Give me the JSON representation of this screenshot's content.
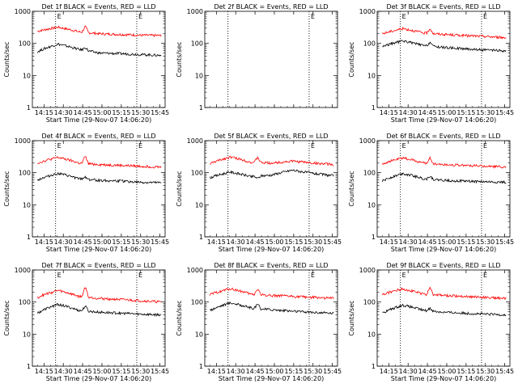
{
  "chart_data": [
    {
      "type": "line",
      "title": "Det 1f  BLACK = Events, RED = LLD",
      "ylabel": "Counts/sec",
      "xlabel": "Start Time (29-Nov-07 14:06:20)",
      "x_ticks": [
        "14:15",
        "14:30",
        "14:45",
        "15:00",
        "15:15",
        "15:30",
        "15:45"
      ],
      "y_ticks": [
        "1",
        "10",
        "100",
        "1000"
      ],
      "ylim": [
        1,
        1000
      ],
      "yscale": "log",
      "markers": [
        {
          "time": "14:24",
          "label": "E"
        },
        {
          "time": "15:27",
          "label": "E"
        }
      ],
      "series": [
        {
          "color": "#ff0000",
          "base": [
            240,
            320,
            230,
            200,
            190,
            180,
            175
          ],
          "spike": {
            "time": "14:47",
            "value": 330
          }
        },
        {
          "color": "#000000",
          "base": [
            55,
            95,
            65,
            50,
            48,
            45,
            42
          ],
          "spike": {
            "time": "14:47",
            "value": 75
          }
        }
      ]
    },
    {
      "type": "line",
      "title": "Det 2f  BLACK = Events, RED = LLD",
      "ylabel": "Counts/sec",
      "xlabel": "",
      "x_ticks": [],
      "y_ticks": [
        "1",
        "10",
        "100",
        "1000"
      ],
      "ylim": [
        1,
        1000
      ],
      "yscale": "log",
      "markers": [
        {
          "time": "14:24",
          "label": ""
        },
        {
          "time": "15:27",
          "label": "E"
        }
      ],
      "series": []
    },
    {
      "type": "line",
      "title": "Det 3f  BLACK = Events, RED = LLD",
      "ylabel": "Counts/sec",
      "xlabel": "Start Time (29-Nov-07 14:06:20)",
      "x_ticks": [
        "14:15",
        "14:30",
        "14:45",
        "15:00",
        "15:15",
        "15:30",
        "15:45"
      ],
      "y_ticks": [
        "1",
        "10",
        "100",
        "1000"
      ],
      "ylim": [
        1,
        1000
      ],
      "yscale": "log",
      "markers": [
        {
          "time": "14:24",
          "label": "E"
        },
        {
          "time": "15:27",
          "label": "E"
        }
      ],
      "series": [
        {
          "color": "#ff0000",
          "base": [
            200,
            290,
            210,
            190,
            175,
            165,
            150
          ],
          "spike": {
            "time": "14:47",
            "value": 290
          }
        },
        {
          "color": "#000000",
          "base": [
            80,
            120,
            85,
            75,
            68,
            62,
            58
          ],
          "spike": {
            "time": "14:47",
            "value": 110
          }
        }
      ]
    },
    {
      "type": "line",
      "title": "Det 4f  BLACK = Events, RED = LLD",
      "ylabel": "Counts/sec",
      "xlabel": "Start Time (29-Nov-07 14:06:20)",
      "x_ticks": [
        "14:15",
        "14:30",
        "14:45",
        "15:00",
        "15:15",
        "15:30",
        "15:45"
      ],
      "y_ticks": [
        "1",
        "10",
        "100",
        "1000"
      ],
      "ylim": [
        1,
        1000
      ],
      "yscale": "log",
      "markers": [
        {
          "time": "14:24",
          "label": "E"
        },
        {
          "time": "15:27",
          "label": "E"
        }
      ],
      "series": [
        {
          "color": "#ff0000",
          "base": [
            200,
            300,
            200,
            180,
            170,
            160,
            150
          ],
          "spike": {
            "time": "14:47",
            "value": 320
          }
        },
        {
          "color": "#000000",
          "base": [
            60,
            95,
            65,
            58,
            55,
            50,
            48
          ],
          "spike": {
            "time": "14:47",
            "value": 75
          }
        }
      ]
    },
    {
      "type": "line",
      "title": "Det 5f  BLACK = Events, RED = LLD",
      "ylabel": "Counts/sec",
      "xlabel": "Start Time (29-Nov-07 14:06:20)",
      "x_ticks": [
        "14:15",
        "14:30",
        "14:45",
        "15:00",
        "15:15",
        "15:30",
        "15:45"
      ],
      "y_ticks": [
        "1",
        "10",
        "100",
        "1000"
      ],
      "ylim": [
        1,
        1000
      ],
      "yscale": "log",
      "markers": [
        {
          "time": "14:24",
          "label": ""
        },
        {
          "time": "15:27",
          "label": "E"
        }
      ],
      "series": [
        {
          "color": "#ff0000",
          "base": [
            190,
            310,
            210,
            200,
            230,
            200,
            180
          ],
          "spike": {
            "time": "14:47",
            "value": 300
          }
        },
        {
          "color": "#000000",
          "base": [
            70,
            105,
            75,
            85,
            120,
            95,
            80
          ],
          "spike": {
            "time": "14:47",
            "value": 65
          }
        }
      ]
    },
    {
      "type": "line",
      "title": "Det 6f  BLACK = Events, RED = LLD",
      "ylabel": "Counts/sec",
      "xlabel": "Start Time (29-Nov-07 14:06:20)",
      "x_ticks": [
        "14:15",
        "14:30",
        "14:45",
        "15:00",
        "15:15",
        "15:30",
        "15:45"
      ],
      "y_ticks": [
        "1",
        "10",
        "100",
        "1000"
      ],
      "ylim": [
        1,
        1000
      ],
      "yscale": "log",
      "markers": [
        {
          "time": "14:24",
          "label": "E"
        },
        {
          "time": "15:27",
          "label": "E"
        }
      ],
      "series": [
        {
          "color": "#ff0000",
          "base": [
            190,
            290,
            200,
            180,
            170,
            160,
            150
          ],
          "spike": {
            "time": "14:47",
            "value": 290
          }
        },
        {
          "color": "#000000",
          "base": [
            55,
            95,
            65,
            58,
            55,
            52,
            50
          ],
          "spike": {
            "time": "14:47",
            "value": 80
          }
        }
      ]
    },
    {
      "type": "line",
      "title": "Det 7f  BLACK = Events, RED = LLD",
      "ylabel": "Counts/sec",
      "xlabel": "Start Time (29-Nov-07 14:06:20)",
      "x_ticks": [
        "14:15",
        "14:30",
        "14:45",
        "15:00",
        "15:15",
        "15:30",
        "15:45"
      ],
      "y_ticks": [
        "1",
        "10",
        "100",
        "1000"
      ],
      "ylim": [
        1,
        1000
      ],
      "yscale": "log",
      "markers": [
        {
          "time": "14:24",
          "label": "E"
        },
        {
          "time": "15:27",
          "label": "E"
        }
      ],
      "series": [
        {
          "color": "#ff0000",
          "base": [
            140,
            230,
            150,
            130,
            120,
            110,
            100
          ],
          "spike": {
            "time": "14:47",
            "value": 290
          }
        },
        {
          "color": "#000000",
          "base": [
            45,
            85,
            55,
            48,
            45,
            42,
            40
          ],
          "spike": {
            "time": "14:47",
            "value": 75
          }
        }
      ]
    },
    {
      "type": "line",
      "title": "Det 8f  BLACK = Events, RED = LLD",
      "ylabel": "Counts/sec",
      "xlabel": "Start Time (29-Nov-07 14:06:20)",
      "x_ticks": [
        "14:15",
        "14:30",
        "14:45",
        "15:00",
        "15:15",
        "15:30",
        "15:45"
      ],
      "y_ticks": [
        "1",
        "10",
        "100",
        "1000"
      ],
      "ylim": [
        1,
        1000
      ],
      "yscale": "log",
      "markers": [
        {
          "time": "14:24",
          "label": ""
        },
        {
          "time": "15:27",
          "label": "E"
        }
      ],
      "series": [
        {
          "color": "#ff0000",
          "base": [
            170,
            260,
            175,
            160,
            150,
            140,
            130
          ],
          "spike": {
            "time": "14:47",
            "value": 260
          }
        },
        {
          "color": "#000000",
          "base": [
            55,
            95,
            65,
            58,
            52,
            48,
            45
          ],
          "spike": {
            "time": "14:47",
            "value": 85
          }
        }
      ]
    },
    {
      "type": "line",
      "title": "Det 9f  BLACK = Events, RED = LLD",
      "ylabel": "Counts/sec",
      "xlabel": "Start Time (29-Nov-07 14:06:20)",
      "x_ticks": [
        "14:15",
        "14:30",
        "14:45",
        "15:00",
        "15:15",
        "15:30",
        "15:45"
      ],
      "y_ticks": [
        "1",
        "10",
        "100",
        "1000"
      ],
      "ylim": [
        1,
        1000
      ],
      "yscale": "log",
      "markers": [
        {
          "time": "14:24",
          "label": "E"
        },
        {
          "time": "15:27",
          "label": "E"
        }
      ],
      "series": [
        {
          "color": "#ff0000",
          "base": [
            170,
            260,
            175,
            160,
            150,
            140,
            130
          ],
          "spike": {
            "time": "14:47",
            "value": 290
          }
        },
        {
          "color": "#000000",
          "base": [
            45,
            80,
            55,
            48,
            45,
            42,
            40
          ],
          "spike": {
            "time": "14:47",
            "value": 65
          }
        }
      ]
    }
  ]
}
